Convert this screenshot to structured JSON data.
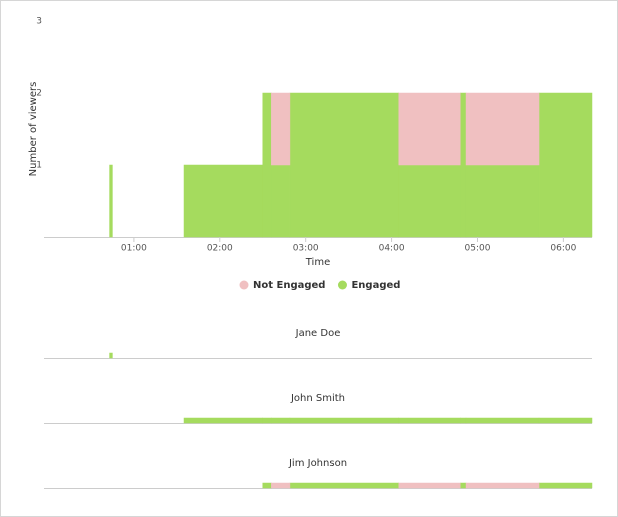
{
  "chart_data": [
    {
      "type": "area",
      "xlabel": "Time",
      "ylabel": "Number of viewers",
      "x": [
        0,
        43,
        45,
        95,
        150,
        156,
        169,
        245,
        288,
        292,
        343
      ],
      "xlim": [
        0,
        380
      ],
      "xticks": [
        {
          "value": 60,
          "label": "01:00"
        },
        {
          "value": 120,
          "label": "02:00"
        },
        {
          "value": 180,
          "label": "03:00"
        },
        {
          "value": 240,
          "label": "04:00"
        },
        {
          "value": 300,
          "label": "05:00"
        },
        {
          "value": 360,
          "label": "06:00"
        }
      ],
      "ylim": [
        0,
        3
      ],
      "yticks": [
        1,
        2,
        3
      ],
      "series": [
        {
          "name": "Not Engaged",
          "color": "#f0c0c1",
          "values": [
            0,
            0,
            0,
            0,
            0,
            1,
            0,
            1,
            0,
            1,
            0
          ]
        },
        {
          "name": "Engaged",
          "color": "#a5db5e",
          "values": [
            0,
            1,
            0,
            1,
            2,
            1,
            2,
            1,
            2,
            1,
            2
          ]
        }
      ]
    },
    {
      "type": "area",
      "title": "Jane Doe",
      "x": [
        0,
        43,
        45,
        95,
        150,
        156,
        169,
        245,
        288,
        292,
        343
      ],
      "xlim": [
        0,
        380
      ],
      "ylim": [
        0,
        1
      ],
      "series": [
        {
          "color": "#f0c0c1",
          "values": [
            0,
            0,
            0,
            0,
            0,
            0,
            0,
            0,
            0,
            0,
            0
          ]
        },
        {
          "color": "#a5db5e",
          "values": [
            0,
            1,
            0,
            0,
            0,
            0,
            0,
            0,
            0,
            0,
            0
          ]
        }
      ]
    },
    {
      "type": "area",
      "title": "John Smith",
      "x": [
        0,
        43,
        45,
        95,
        150,
        156,
        169,
        245,
        288,
        292,
        343
      ],
      "xlim": [
        0,
        380
      ],
      "ylim": [
        0,
        1
      ],
      "series": [
        {
          "color": "#f0c0c1",
          "values": [
            0,
            0,
            0,
            0,
            0,
            0,
            0,
            0,
            0,
            0,
            0
          ]
        },
        {
          "color": "#a5db5e",
          "values": [
            0,
            0,
            0,
            1,
            1,
            1,
            1,
            1,
            1,
            1,
            1
          ]
        }
      ]
    },
    {
      "type": "area",
      "title": "Jim Johnson",
      "x": [
        0,
        43,
        45,
        95,
        150,
        156,
        169,
        245,
        288,
        292,
        343
      ],
      "xlim": [
        0,
        380
      ],
      "ylim": [
        0,
        1
      ],
      "series": [
        {
          "color": "#f0c0c1",
          "values": [
            0,
            0,
            0,
            0,
            0,
            1,
            0,
            1,
            0,
            1,
            0
          ]
        },
        {
          "color": "#a5db5e",
          "values": [
            0,
            0,
            0,
            0,
            1,
            0,
            1,
            0,
            1,
            0,
            1
          ]
        }
      ]
    }
  ]
}
